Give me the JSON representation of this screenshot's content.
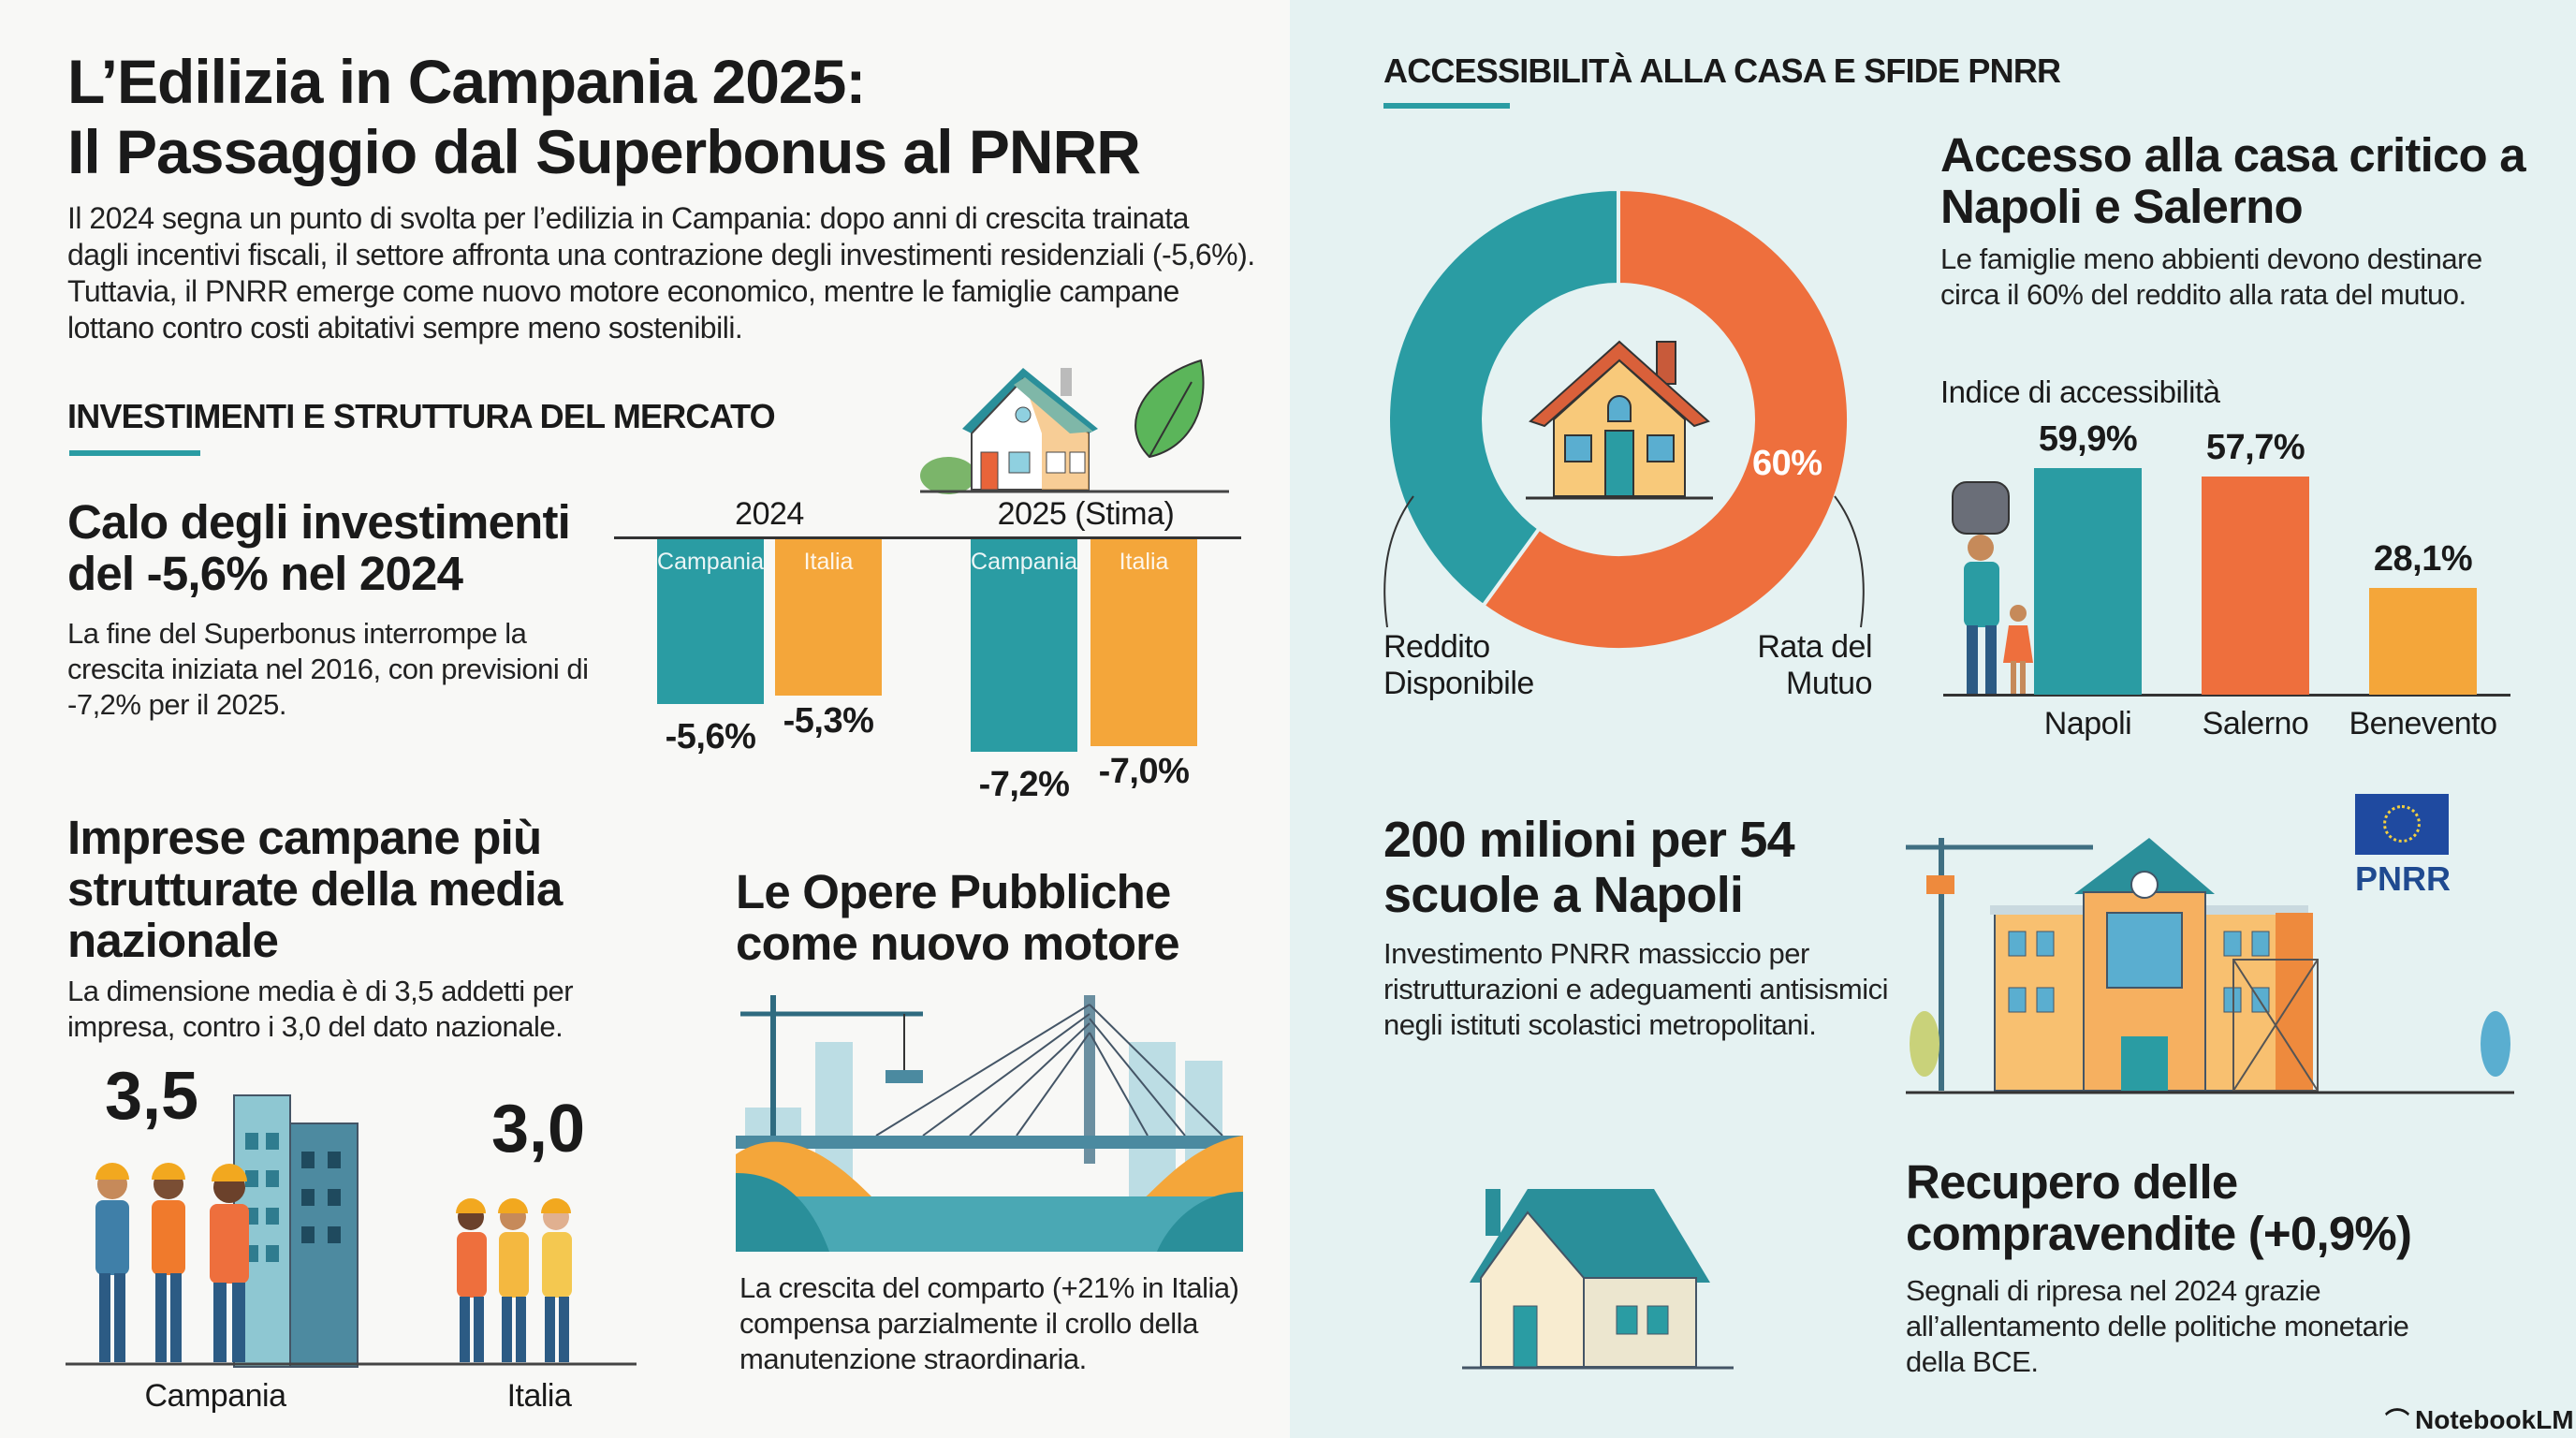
{
  "header": {
    "title_line1": "L’Edilizia in Campania 2025:",
    "title_line2": "Il Passaggio dal Superbonus al PNRR",
    "intro": "Il 2024 segna un punto di svolta per l’edilizia in Campania: dopo anni di crescita trainata dagli incentivi fiscali, il settore affronta una contrazione degli investimenti residenziali (-5,6%). Tuttavia, il PNRR emerge come nuovo motore economico, mentre le famiglie campane lottano contro costi abitativi sempre meno sostenibili."
  },
  "left": {
    "section_title": "INVESTIMENTI E STRUTTURA DEL MERCATO",
    "investimenti": {
      "heading": "Calo degli investimenti del -5,6% nel 2024",
      "text": "La fine del Superbonus interrompe la crescita iniziata nel 2016, con previsioni di -7,2% per il 2025."
    },
    "imprese": {
      "heading": "Imprese campane più strutturate della media nazionale",
      "text": "La dimensione media è di 3,5 addetti per impresa, contro i 3,0 del dato nazionale.",
      "campania_value": "3,5",
      "italia_value": "3,0",
      "campania_label": "Campania",
      "italia_label": "Italia"
    },
    "opere": {
      "heading": "Le Opere Pubbliche come nuovo motore",
      "text": "La crescita del comparto (+21% in Italia) compensa parzialmente il crollo della manutenzione straordinaria."
    }
  },
  "right": {
    "section_title": "ACCESSIBILITÀ ALLA CASA E SFIDE PNRR",
    "accesso": {
      "heading": "Accesso alla casa critico a Napoli e Salerno",
      "text": "Le famiglie meno abbienti devono destinare circa il 60% del reddito alla rata del mutuo."
    },
    "scuole": {
      "heading": "200 milioni per 54 scuole a Napoli",
      "text": "Investimento PNRR massiccio per ristrutturazioni e adeguamenti antisismici negli istituti scolastici metropolitani.",
      "flag_label": "PNRR"
    },
    "recupero": {
      "heading": "Recupero delle compravendite (+0,9%)",
      "text": "Segnali di ripresa nel 2024 grazie all’allentamento delle politiche monetarie della BCE."
    },
    "brand": "NotebookLM"
  },
  "colors": {
    "teal": "#2a9ca3",
    "orange": "#ee6f3d",
    "amber": "#f4a63a",
    "panel_right": "#e5f2f2",
    "panel_left": "#f8f8f6"
  },
  "chart_data": [
    {
      "type": "bar",
      "categories": [
        "2024",
        "2025 (Stima)"
      ],
      "series": [
        {
          "name": "Campania",
          "values": [
            -5.6,
            -7.2
          ],
          "labels": [
            "-5,6%",
            "-7,2%"
          ]
        },
        {
          "name": "Italia",
          "values": [
            -5.3,
            -7.0
          ],
          "labels": [
            "-5,3%",
            "-7,0%"
          ]
        }
      ]
    },
    {
      "type": "pie",
      "slices": [
        {
          "name": "Rata del Mutuo",
          "value": 60,
          "label": "60%"
        },
        {
          "name": "Reddito Disponibile",
          "value": 40
        }
      ]
    },
    {
      "type": "bar",
      "title": "Indice di accessibilità",
      "categories": [
        "Napoli",
        "Salerno",
        "Benevento"
      ],
      "values": [
        59.9,
        57.7,
        28.1
      ],
      "labels": [
        "59,9%",
        "57,7%",
        "28,1%"
      ]
    }
  ]
}
